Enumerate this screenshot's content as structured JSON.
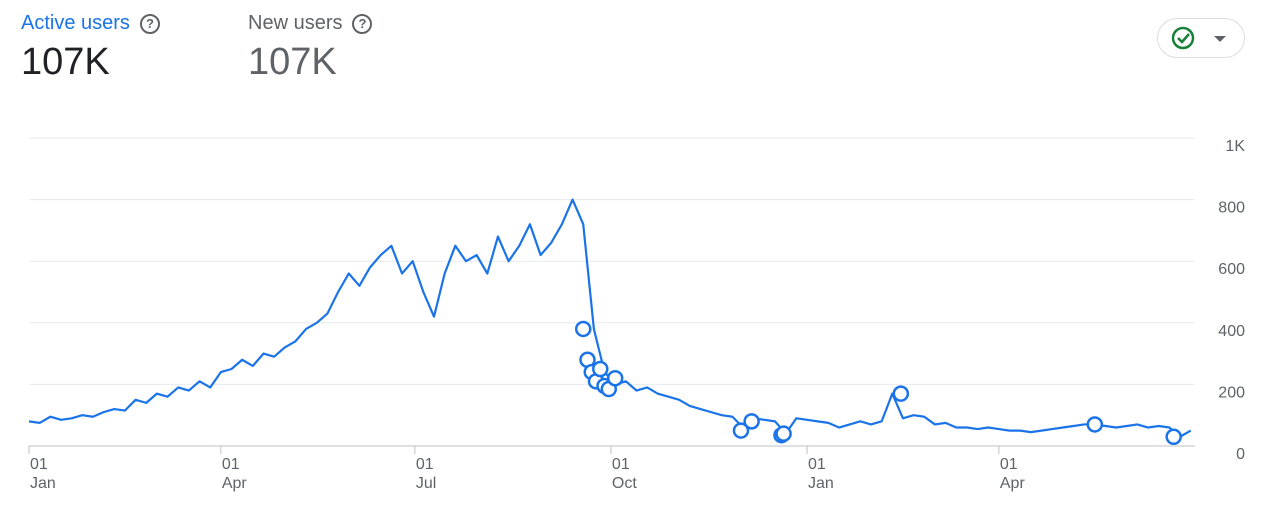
{
  "metrics": [
    {
      "label": "Active users",
      "value": "107K"
    },
    {
      "label": "New users",
      "value": "107K"
    }
  ],
  "chart_data": {
    "type": "line",
    "color": "#1a73e8",
    "x": [
      0,
      5,
      10,
      15,
      20,
      25,
      30,
      35,
      40,
      45,
      50,
      55,
      60,
      65,
      70,
      75,
      80,
      85,
      90,
      95,
      100,
      105,
      110,
      115,
      120,
      125,
      130,
      135,
      140,
      145,
      150,
      155,
      160,
      165,
      170,
      175,
      180,
      185,
      190,
      195,
      200,
      205,
      210,
      215,
      220,
      225,
      230,
      235,
      240,
      245,
      250,
      255,
      260,
      265,
      270,
      275,
      280,
      285,
      290,
      295,
      300,
      305,
      310,
      315,
      320,
      325,
      330,
      335,
      340,
      345,
      350,
      355,
      360,
      365,
      370,
      375,
      380,
      385,
      390,
      395,
      400,
      405,
      410,
      415,
      420,
      425,
      430,
      435,
      440,
      445,
      450,
      455,
      460,
      465,
      470,
      475,
      480,
      485,
      490,
      495,
      500,
      505,
      510,
      515,
      520,
      525,
      530,
      535,
      540,
      545
    ],
    "values": [
      80,
      75,
      95,
      85,
      90,
      100,
      95,
      110,
      120,
      115,
      150,
      140,
      170,
      160,
      190,
      180,
      210,
      190,
      240,
      250,
      280,
      260,
      300,
      290,
      320,
      340,
      380,
      400,
      430,
      500,
      560,
      520,
      580,
      620,
      650,
      560,
      600,
      500,
      420,
      560,
      650,
      600,
      620,
      560,
      680,
      600,
      650,
      720,
      620,
      660,
      720,
      800,
      720,
      380,
      240,
      200,
      210,
      180,
      190,
      170,
      160,
      150,
      130,
      120,
      110,
      100,
      95,
      60,
      90,
      85,
      80,
      40,
      90,
      85,
      80,
      75,
      60,
      70,
      80,
      70,
      80,
      170,
      90,
      100,
      95,
      70,
      75,
      60,
      60,
      55,
      60,
      55,
      50,
      50,
      45,
      50,
      55,
      60,
      65,
      70,
      70,
      65,
      60,
      65,
      70,
      60,
      65,
      60,
      30,
      50
    ],
    "anomalies": {
      "x": [
        260,
        262,
        264,
        266,
        268,
        270,
        272,
        275,
        334,
        339,
        353,
        354,
        409,
        500,
        537
      ],
      "values": [
        380,
        280,
        240,
        210,
        250,
        195,
        185,
        220,
        50,
        80,
        35,
        40,
        170,
        70,
        30
      ]
    },
    "xlim": [
      0,
      547
    ],
    "xticks": [
      {
        "value": 0,
        "label": "01",
        "sublabel": "Jan"
      },
      {
        "value": 90,
        "label": "01",
        "sublabel": "Apr"
      },
      {
        "value": 181,
        "label": "01",
        "sublabel": "Jul"
      },
      {
        "value": 273,
        "label": "01",
        "sublabel": "Oct"
      },
      {
        "value": 365,
        "label": "01",
        "sublabel": "Jan"
      },
      {
        "value": 455,
        "label": "01",
        "sublabel": "Apr"
      }
    ],
    "ylim": [
      0,
      1000
    ],
    "yticks": [
      0,
      200,
      400,
      600,
      800,
      {
        "value": 1000,
        "label": "1K"
      }
    ],
    "grid": true
  }
}
